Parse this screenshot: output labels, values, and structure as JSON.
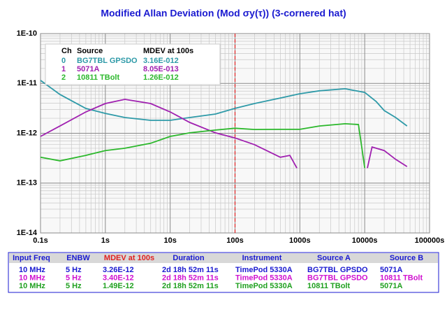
{
  "chart_data": {
    "type": "line",
    "title": "Modified Allan Deviation (Mod σy(τ)) (3-cornered hat)",
    "xlog": true,
    "ylog": true,
    "grid": true,
    "xlim": [
      0.1,
      100000
    ],
    "ylim": [
      1e-14,
      1e-10
    ],
    "xticks": [
      {
        "value": 0.1,
        "label": "0.1s"
      },
      {
        "value": 1,
        "label": "1s"
      },
      {
        "value": 10,
        "label": "10s"
      },
      {
        "value": 100,
        "label": "100s"
      },
      {
        "value": 1000,
        "label": "1000s"
      },
      {
        "value": 10000,
        "label": "10000s"
      },
      {
        "value": 100000,
        "label": "100000s"
      }
    ],
    "yticks": [
      {
        "value": 1e-14,
        "label": "1E-14"
      },
      {
        "value": 1e-13,
        "label": "1E-13"
      },
      {
        "value": 1e-12,
        "label": "1E-12"
      },
      {
        "value": 1e-11,
        "label": "1E-11"
      },
      {
        "value": 1e-10,
        "label": "1E-10"
      }
    ],
    "marker_x": 100,
    "legend_headers": [
      "Ch",
      "Source",
      "MDEV at 100s"
    ],
    "series": [
      {
        "ch": "0",
        "name": "BG7TBL GPSDO",
        "mdev": "3.16E-012",
        "color": "#2e9aa8",
        "x": [
          0.1,
          0.2,
          0.5,
          1,
          2,
          5,
          10,
          20,
          50,
          100,
          200,
          500,
          1000,
          2000,
          5000,
          10000,
          15000,
          20000,
          30000,
          45000
        ],
        "values": [
          1.15e-11,
          6e-12,
          3.15e-12,
          2.5e-12,
          2.07e-12,
          1.82e-12,
          1.82e-12,
          2.07e-12,
          2.43e-12,
          3.16e-12,
          3.95e-12,
          5.1e-12,
          6.2e-12,
          7.1e-12,
          7.8e-12,
          6.6e-12,
          4.35e-12,
          2.86e-12,
          2.07e-12,
          1.4e-12
        ]
      },
      {
        "ch": "1",
        "name": "5071A",
        "mdev": "8.05E-013",
        "color": "#a020b0",
        "x": [
          0.1,
          0.2,
          0.5,
          1,
          2,
          5,
          10,
          20,
          50,
          100,
          200,
          500,
          700,
          900,
          1000,
          11000,
          13000,
          20000,
          30000,
          45000
        ],
        "values": [
          8.65e-13,
          1.4e-12,
          2.68e-12,
          3.95e-12,
          4.8e-12,
          3.95e-12,
          2.68e-12,
          1.65e-12,
          1.02e-12,
          8.05e-13,
          5.9e-13,
          3.3e-13,
          3.6e-13,
          2e-13,
          null,
          2e-13,
          5.3e-13,
          4.5e-13,
          3e-13,
          2.15e-13
        ]
      },
      {
        "ch": "2",
        "name": "10811 TBolt",
        "mdev": "1.26E-012",
        "color": "#2cb82c",
        "x": [
          0.1,
          0.2,
          0.5,
          1,
          2,
          5,
          10,
          20,
          50,
          100,
          200,
          500,
          1000,
          2000,
          5000,
          8000,
          9000,
          10000
        ],
        "values": [
          3.3e-13,
          2.8e-13,
          3.6e-13,
          4.5e-13,
          5e-13,
          6.3e-13,
          8.65e-13,
          1.02e-12,
          1.16e-12,
          1.26e-12,
          1.19e-12,
          1.2e-12,
          1.2e-12,
          1.4e-12,
          1.55e-12,
          1.5e-12,
          5.3e-13,
          2e-13
        ]
      }
    ]
  },
  "table": {
    "headers": [
      "Input Freq",
      "ENBW",
      "MDEV at 100s",
      "Duration",
      "Instrument",
      "Source A",
      "Source B"
    ],
    "rows": [
      {
        "color": "#1a1ad0",
        "cells": [
          "10 MHz",
          "5 Hz",
          "3.26E-12",
          "2d 18h 52m 11s",
          "TimePod 5330A",
          "BG7TBL GPSDO",
          "5071A"
        ]
      },
      {
        "color": "#d010d0",
        "cells": [
          "10 MHz",
          "5 Hz",
          "3.40E-12",
          "2d 18h 52m 11s",
          "TimePod 5330A",
          "BG7TBL GPSDO",
          "10811 TBolt"
        ]
      },
      {
        "color": "#20a020",
        "cells": [
          "10 MHz",
          "5 Hz",
          "1.49E-12",
          "2d 18h 52m 11s",
          "TimePod 5330A",
          "10811 TBolt",
          "5071A"
        ]
      }
    ]
  }
}
